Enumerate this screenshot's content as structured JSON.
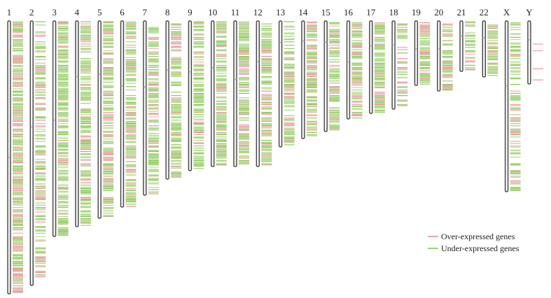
{
  "colors": {
    "over": "#e8828a",
    "under": "#7cc242",
    "mixed": "#b8a868",
    "chrom_fill": "#f4f4f4",
    "chrom_stroke": "#444444",
    "centromere": "#9a9a9a"
  },
  "legend": {
    "over_label": "Over-expressed genes",
    "under_label": "Under-expressed genes"
  },
  "chromosomes": [
    {
      "name": "1",
      "length": 390,
      "centromere": 0.5,
      "density": 0.95,
      "over_ratio": 0.42
    },
    {
      "name": "2",
      "length": 378,
      "centromere": 0.4,
      "density": 0.7,
      "over_ratio": 0.45
    },
    {
      "name": "3",
      "length": 308,
      "centromere": 0.46,
      "density": 0.85,
      "over_ratio": 0.12
    },
    {
      "name": "4",
      "length": 294,
      "centromere": 0.27,
      "density": 0.8,
      "over_ratio": 0.18
    },
    {
      "name": "5",
      "length": 282,
      "centromere": 0.27,
      "density": 0.8,
      "over_ratio": 0.35
    },
    {
      "name": "6",
      "length": 266,
      "centromere": 0.35,
      "density": 0.85,
      "over_ratio": 0.3
    },
    {
      "name": "7",
      "length": 249,
      "centromere": 0.38,
      "density": 0.85,
      "over_ratio": 0.22
    },
    {
      "name": "8",
      "length": 226,
      "centromere": 0.31,
      "density": 0.8,
      "over_ratio": 0.3
    },
    {
      "name": "9",
      "length": 214,
      "centromere": 0.34,
      "density": 0.8,
      "over_ratio": 0.15
    },
    {
      "name": "10",
      "length": 208,
      "centromere": 0.32,
      "density": 0.85,
      "over_ratio": 0.2
    },
    {
      "name": "11",
      "length": 208,
      "centromere": 0.4,
      "density": 0.95,
      "over_ratio": 0.35
    },
    {
      "name": "12",
      "length": 208,
      "centromere": 0.28,
      "density": 0.85,
      "over_ratio": 0.25
    },
    {
      "name": "13",
      "length": 180,
      "centromere": 0.17,
      "density": 0.75,
      "over_ratio": 0.3
    },
    {
      "name": "14",
      "length": 168,
      "centromere": 0.17,
      "density": 0.9,
      "over_ratio": 0.4
    },
    {
      "name": "15",
      "length": 158,
      "centromere": 0.19,
      "density": 0.9,
      "over_ratio": 0.2
    },
    {
      "name": "16",
      "length": 140,
      "centromere": 0.42,
      "density": 0.85,
      "over_ratio": 0.35
    },
    {
      "name": "17",
      "length": 132,
      "centromere": 0.27,
      "density": 0.95,
      "over_ratio": 0.3
    },
    {
      "name": "18",
      "length": 126,
      "centromere": 0.27,
      "density": 0.6,
      "over_ratio": 0.3
    },
    {
      "name": "19",
      "length": 92,
      "centromere": 0.43,
      "density": 1.0,
      "over_ratio": 0.35
    },
    {
      "name": "20",
      "length": 100,
      "centromere": 0.4,
      "density": 0.9,
      "over_ratio": 0.35
    },
    {
      "name": "21",
      "length": 72,
      "centromere": 0.3,
      "density": 0.75,
      "over_ratio": 0.35
    },
    {
      "name": "22",
      "length": 80,
      "centromere": 0.3,
      "density": 0.9,
      "over_ratio": 0.3
    },
    {
      "name": "X",
      "length": 244,
      "centromere": 0.38,
      "density": 0.6,
      "over_ratio": 0.35
    },
    {
      "name": "Y",
      "length": 90,
      "centromere": 0.3,
      "density": 0.05,
      "over_ratio": 1.0
    }
  ]
}
